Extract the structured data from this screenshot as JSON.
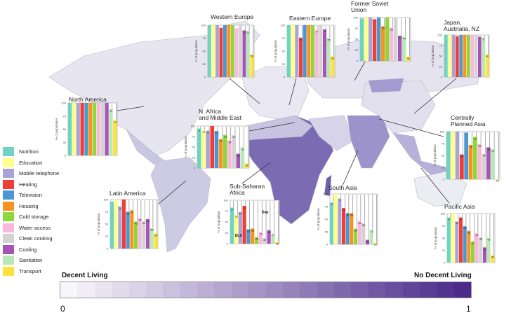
{
  "legend": {
    "categories": [
      "Nutrition",
      "Education",
      "Mobile telephone",
      "Heating",
      "Television",
      "Housing",
      "Cold storage",
      "Water access",
      "Clean cooking",
      "Cooling",
      "Sanitation",
      "Transport"
    ],
    "colors": [
      "#6ed3c0",
      "#ffff8a",
      "#a9a3d6",
      "#ef3e36",
      "#4c96d2",
      "#f7941d",
      "#8ed63e",
      "#f9b8dc",
      "#d3d3d3",
      "#a654b8",
      "#b9e8b7",
      "#ffe23a"
    ]
  },
  "colorbar": {
    "left_label": "Decent Living",
    "right_label": "No Decent Living",
    "min": "0",
    "max": "1",
    "color_low": "#f7f6fb",
    "color_high": "#4b2a8a"
  },
  "chart_data": [
    {
      "type": "bar",
      "title": "Western Europe",
      "ylabel": "% of population",
      "ylim": [
        0,
        100
      ],
      "yticks": [
        "0",
        "25",
        "50",
        "75",
        "100"
      ],
      "values": [
        100,
        100,
        100,
        95,
        100,
        100,
        100,
        94,
        100,
        90,
        89,
        44
      ],
      "gap_labels": [
        "",
        "",
        "",
        "",
        "",
        "",
        "",
        "",
        "",
        "10",
        "11",
        "56"
      ]
    },
    {
      "type": "bar",
      "title": "Eastern Europe",
      "ylabel": "% of population",
      "ylim": [
        0,
        100
      ],
      "yticks": [
        "0",
        "25",
        "50",
        "75",
        "100"
      ],
      "values": [
        100,
        100,
        100,
        76,
        100,
        100,
        100,
        91,
        100,
        92,
        75,
        40
      ],
      "gap_labels": [
        "",
        "",
        "",
        "24",
        "",
        "",
        "",
        "9",
        "",
        "8",
        "25",
        "60"
      ]
    },
    {
      "type": "bar",
      "title": "Former Soviet\nUnion",
      "ylabel": "% of population",
      "ylim": [
        0,
        100
      ],
      "yticks": [
        "0",
        "25",
        "50",
        "75",
        "100"
      ],
      "values": [
        98,
        100,
        100,
        96,
        100,
        80,
        100,
        77,
        100,
        58,
        56,
        10
      ],
      "gap_labels": [
        "",
        "",
        "",
        "",
        "",
        "20",
        "",
        "23",
        "",
        "42",
        "44",
        "90"
      ]
    },
    {
      "type": "bar",
      "title": "Japan,\nAustrialia, NZ",
      "ylabel": "% of population",
      "ylim": [
        0,
        100
      ],
      "yticks": [
        "0",
        "25",
        "50",
        "75",
        "100"
      ],
      "values": [
        100,
        100,
        100,
        97,
        100,
        100,
        100,
        100,
        100,
        96,
        94,
        54
      ],
      "gap_labels": [
        "",
        "",
        "",
        "",
        "",
        "",
        "",
        "",
        "",
        "",
        "6",
        "46"
      ]
    },
    {
      "type": "bar",
      "title": "North America",
      "ylabel": "% of population",
      "ylim": [
        0,
        100
      ],
      "yticks": [
        "0",
        "25",
        "50",
        "75",
        "100"
      ],
      "values": [
        100,
        100,
        100,
        100,
        100,
        100,
        100,
        100,
        100,
        100,
        89,
        67
      ],
      "gap_labels": [
        "",
        "",
        "",
        "",
        "",
        "",
        "",
        "",
        "",
        "",
        "11",
        "33"
      ]
    },
    {
      "type": "bar",
      "title": "N. Africa\nand Middle East",
      "ylabel": "% of population",
      "ylim": [
        0,
        100
      ],
      "yticks": [
        "0",
        "25",
        "50",
        "75",
        "100"
      ],
      "values": [
        94,
        90,
        89,
        100,
        88,
        69,
        79,
        66,
        78,
        34,
        49,
        11
      ],
      "gap_labels": [
        "6",
        "10",
        "11",
        "",
        "12",
        "31",
        "21",
        "34",
        "22",
        "66",
        "51",
        "89"
      ]
    },
    {
      "type": "bar",
      "title": "Centrally\nPlanned Asia",
      "ylabel": "% of population",
      "ylim": [
        0,
        100
      ],
      "yticks": [
        "0",
        "25",
        "50",
        "75",
        "100"
      ],
      "values": [
        100,
        100,
        100,
        52,
        98,
        72,
        89,
        74,
        54,
        67,
        63,
        1
      ],
      "gap_labels": [
        "",
        "",
        "",
        "48",
        "",
        "28",
        "11",
        "26",
        "46",
        "33",
        "37",
        "99"
      ]
    },
    {
      "type": "bar",
      "title": "Latin America",
      "ylabel": "% of population",
      "ylim": [
        0,
        100
      ],
      "yticks": [
        "0",
        "25",
        "50",
        "75",
        "100"
      ],
      "values": [
        96,
        100,
        86,
        100,
        75,
        78,
        55,
        62,
        56,
        60,
        42,
        31
      ],
      "gap_labels": [
        "",
        "",
        "14",
        "",
        "25",
        "22",
        "45",
        "38",
        "44",
        "40",
        "58",
        "69"
      ]
    },
    {
      "type": "bar",
      "title": "Sub-Saharan\nAfrica",
      "ylabel": "% of population",
      "ylim": [
        0,
        100
      ],
      "yticks": [
        "0",
        "25",
        "50",
        "75",
        "100"
      ],
      "values": [
        83,
        67,
        73,
        87,
        33,
        35,
        15,
        27,
        13,
        31,
        23,
        4
      ],
      "gap_labels": [
        "17",
        "33",
        "27",
        "13",
        "67",
        "65",
        "85",
        "73",
        "87",
        "69",
        "77",
        "96"
      ],
      "annotations": [
        "DLS",
        "Gap"
      ]
    },
    {
      "type": "bar",
      "title": "South Asia",
      "ylabel": "% of population",
      "ylim": [
        0,
        100
      ],
      "yticks": [
        "0",
        "25",
        "50",
        "75",
        "100"
      ],
      "values": [
        83,
        100,
        91,
        72,
        62,
        62,
        31,
        46,
        42,
        9,
        29,
        3
      ],
      "gap_labels": [
        "17",
        "",
        "9",
        "28",
        "38",
        "38",
        "69",
        "54",
        "58",
        "91",
        "71",
        "97"
      ]
    },
    {
      "type": "bar",
      "title": "Pacific Asia",
      "ylabel": "% of population",
      "ylim": [
        0,
        100
      ],
      "yticks": [
        "0",
        "25",
        "50",
        "75",
        "100"
      ],
      "values": [
        92,
        100,
        84,
        92,
        74,
        65,
        43,
        60,
        52,
        31,
        51,
        15
      ],
      "gap_labels": [
        "8",
        "",
        "16",
        "8",
        "26",
        "35",
        "57",
        "40",
        "48",
        "69",
        "49",
        "85"
      ]
    }
  ]
}
